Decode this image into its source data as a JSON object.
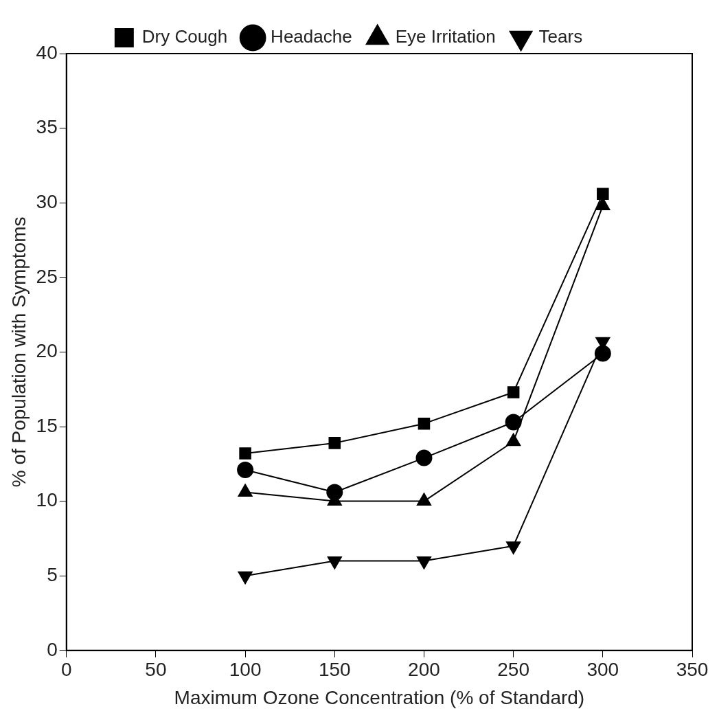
{
  "chart_data": {
    "type": "line",
    "xlabel": "Maximum Ozone Concentration (% of Standard)",
    "ylabel": "% of Population with Symptoms",
    "x": [
      100,
      150,
      200,
      250,
      300
    ],
    "series": [
      {
        "name": "Dry Cough",
        "color": "#000000",
        "marker": "square",
        "values": [
          13.2,
          13.9,
          15.2,
          17.3,
          30.6
        ]
      },
      {
        "name": "Headache",
        "color": "#000000",
        "marker": "circle",
        "values": [
          12.1,
          10.6,
          12.9,
          15.3,
          19.9
        ]
      },
      {
        "name": "Eye Irritation",
        "color": "#000000",
        "marker": "triangle",
        "values": [
          10.6,
          10,
          10,
          14,
          29.8
        ]
      },
      {
        "name": "Tears",
        "color": "#000000",
        "marker": "triangle-down",
        "values": [
          5,
          6,
          6,
          7,
          20.7
        ]
      }
    ],
    "xlim": [
      0,
      350
    ],
    "xticks": [
      0,
      50,
      100,
      150,
      200,
      250,
      300,
      350
    ],
    "ylim": [
      0,
      40
    ],
    "yticks": [
      0,
      5,
      10,
      15,
      20,
      25,
      30,
      35,
      40
    ],
    "grid": false,
    "legend": "top",
    "line_style": "solid"
  }
}
